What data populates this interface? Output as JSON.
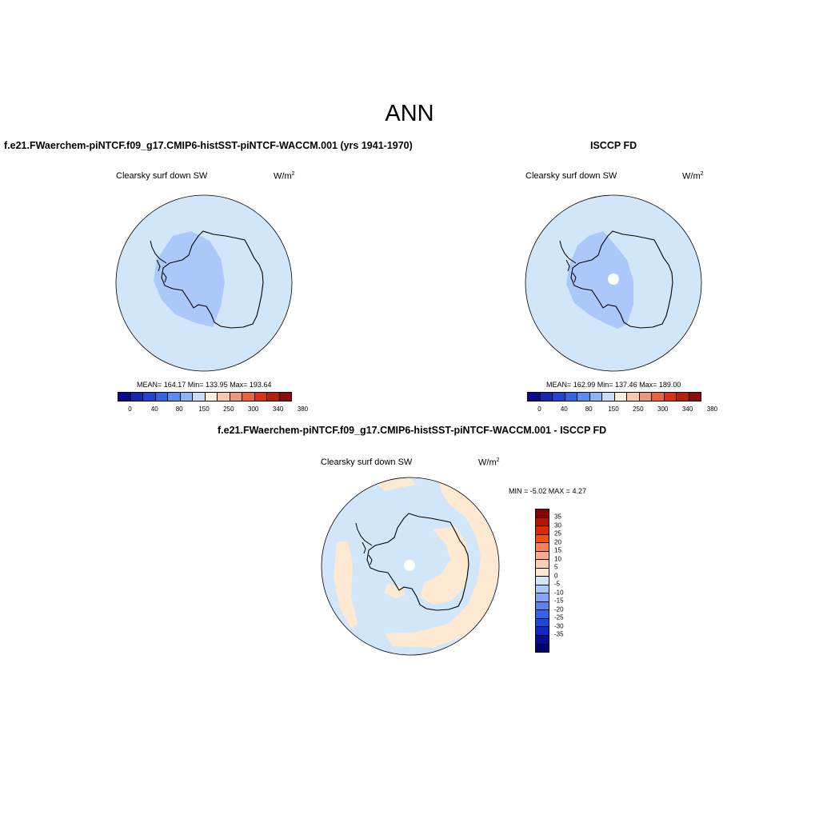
{
  "figure": {
    "title": "ANN"
  },
  "panels": [
    {
      "id": "model",
      "title": "f.e21.FWaerchem-piNTCF.f09_g17.CMIP6-histSST-piNTCF-WACCM.001 (yrs 1941-1970)",
      "variable": "Clearsky surf down SW",
      "units": "W/m",
      "units_exp": "2",
      "stats": "MEAN= 164.17  Min= 133.95  Max= 193.64"
    },
    {
      "id": "obs",
      "title": "ISCCP FD",
      "variable": "Clearsky surf down SW",
      "units": "W/m",
      "units_exp": "2",
      "stats": "MEAN= 162.99  Min= 137.46  Max= 189.00"
    },
    {
      "id": "diff",
      "title": "f.e21.FWaerchem-piNTCF.f09_g17.CMIP6-histSST-piNTCF-WACCM.001 - ISCCP FD",
      "variable": "Clearsky surf down SW",
      "units": "W/m",
      "units_exp": "2",
      "stats": "MIN =  -5.02 MAX =   4.27"
    }
  ],
  "abs_colorbar": {
    "colors": [
      "#0a0a8c",
      "#1428b4",
      "#1e46d2",
      "#3264e6",
      "#5a8cf0",
      "#8cb4f5",
      "#c8dcfa",
      "#fff0dc",
      "#fac8aa",
      "#f09678",
      "#eb643c",
      "#dc3214",
      "#b41e0a",
      "#8c0a0a"
    ],
    "labels": [
      "0",
      "40",
      "80",
      "150",
      "250",
      "300",
      "340",
      "380"
    ]
  },
  "diff_colorbar": {
    "colors": [
      "#8c0000",
      "#b41400",
      "#dc2800",
      "#f05014",
      "#f5825a",
      "#faaa87",
      "#fccdaf",
      "#fde8d2",
      "#d2e6fa",
      "#aac8fa",
      "#82a5f5",
      "#5a82f0",
      "#3264eb",
      "#1e46dc",
      "#0f28c3",
      "#050f96",
      "#00006e"
    ],
    "labels": [
      "35",
      "30",
      "25",
      "20",
      "15",
      "10",
      "5",
      "0",
      "-5",
      "-10",
      "-15",
      "-20",
      "-25",
      "-30",
      "-35"
    ]
  },
  "map_colors": {
    "ocean_abs": "#d2e6fa",
    "interior_abs": "#aac8fa",
    "ocean_diff": "#d2e6fa",
    "positive_diff": "#fde8d2",
    "missing": "#ffffff"
  }
}
